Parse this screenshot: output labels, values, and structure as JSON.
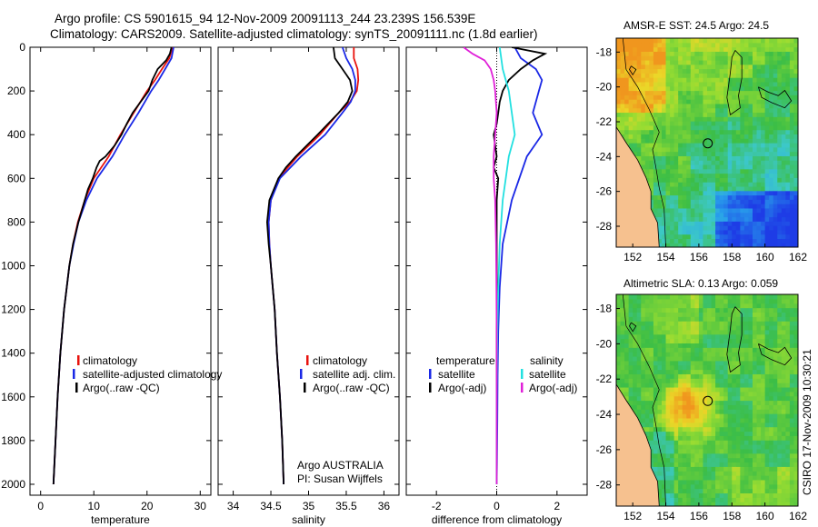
{
  "header": {
    "line1": "Argo profile: CS 5901615_94 12-Nov-2009 20091113_244 23.239S 156.539E",
    "line2": "Climatology: CARS2009. Satellite-adjusted climatology: synTS_20091111.nc (1.8d earlier)"
  },
  "side_label": "CSIRO 17-Nov-2009 10:30:21",
  "colors": {
    "climatology": "#e8120c",
    "satellite": "#1a28e6",
    "argo": "#000000",
    "salinity_sat": "#22e0e0",
    "salinity_argo": "#e020d8"
  },
  "chart_data": [
    {
      "type": "line",
      "xlabel": "temperature",
      "xlim": [
        -2,
        32
      ],
      "ylim": [
        2050,
        0
      ],
      "x_ticks": [
        "0",
        "10",
        "20",
        "30"
      ],
      "y_ticks": [
        "0",
        "200",
        "400",
        "600",
        "800",
        "1000",
        "1200",
        "1400",
        "1600",
        "1800",
        "2000"
      ],
      "legend": [
        "climatology",
        "satellite-adjusted climatology",
        "Argo(..raw -QC)"
      ],
      "series": [
        {
          "name": "climatology",
          "color": "#e8120c",
          "depth": [
            0,
            50,
            100,
            150,
            200,
            300,
            400,
            500,
            600,
            700,
            800,
            900,
            1000,
            1200,
            1400,
            1600,
            1800,
            2000
          ],
          "values": [
            24.8,
            24.2,
            22.8,
            21.5,
            20.0,
            17.5,
            15.0,
            12.8,
            10.0,
            8.3,
            7.0,
            6.1,
            5.4,
            4.4,
            3.7,
            3.2,
            2.8,
            2.4
          ]
        },
        {
          "name": "satellite-adjusted climatology",
          "color": "#1a28e6",
          "depth": [
            0,
            50,
            100,
            150,
            200,
            300,
            400,
            500,
            600,
            700,
            800,
            900,
            1000,
            1200,
            1400,
            1600,
            1800,
            2000
          ],
          "values": [
            25.0,
            24.6,
            23.4,
            22.2,
            20.8,
            18.4,
            15.8,
            13.5,
            10.6,
            8.6,
            7.1,
            6.2,
            5.4,
            4.4,
            3.7,
            3.2,
            2.8,
            2.4
          ]
        },
        {
          "name": "Argo(..raw -QC)",
          "color": "#000000",
          "depth": [
            0,
            30,
            60,
            100,
            150,
            200,
            250,
            300,
            350,
            400,
            450,
            500,
            520,
            550,
            600,
            650,
            700,
            800,
            900,
            1000,
            1200,
            1400,
            1600,
            1800,
            2000
          ],
          "values": [
            24.6,
            24.3,
            23.6,
            22.0,
            21.0,
            20.3,
            18.8,
            17.3,
            16.2,
            15.2,
            13.9,
            12.2,
            11.1,
            10.5,
            9.8,
            8.9,
            8.3,
            7.1,
            6.1,
            5.4,
            4.4,
            3.7,
            3.2,
            2.8,
            2.4
          ]
        }
      ]
    },
    {
      "type": "line",
      "xlabel": "salinity",
      "xlim": [
        33.8,
        36.2
      ],
      "ylim": [
        2050,
        0
      ],
      "x_ticks": [
        "34",
        "34.5",
        "35",
        "35.5",
        "36"
      ],
      "legend": [
        "climatology",
        "satellite adj. clim.",
        "Argo(..raw -QC)"
      ],
      "annotation": [
        "Argo AUSTRALIA",
        "PI: Susan Wijffels"
      ],
      "series": [
        {
          "name": "climatology",
          "color": "#e8120c",
          "depth": [
            0,
            50,
            100,
            150,
            200,
            250,
            300,
            400,
            500,
            600,
            700,
            800,
            900,
            1000,
            1200,
            1400,
            1600,
            1800,
            2000
          ],
          "values": [
            35.6,
            35.6,
            35.65,
            35.66,
            35.64,
            35.55,
            35.4,
            35.15,
            34.85,
            34.6,
            34.5,
            34.47,
            34.48,
            34.5,
            34.55,
            34.58,
            34.62,
            34.65,
            34.67
          ]
        },
        {
          "name": "satellite adj. clim.",
          "color": "#1a28e6",
          "depth": [
            0,
            50,
            100,
            150,
            200,
            250,
            300,
            400,
            500,
            600,
            700,
            800,
            900,
            1000,
            1200,
            1400,
            1600,
            1800,
            2000
          ],
          "values": [
            35.45,
            35.5,
            35.58,
            35.62,
            35.62,
            35.56,
            35.45,
            35.22,
            34.9,
            34.62,
            34.5,
            34.47,
            34.48,
            34.5,
            34.55,
            34.58,
            34.62,
            34.65,
            34.67
          ]
        },
        {
          "name": "Argo(..raw -QC)",
          "color": "#000000",
          "depth": [
            0,
            50,
            100,
            150,
            200,
            250,
            300,
            400,
            500,
            550,
            600,
            700,
            800,
            900,
            1000,
            1200,
            1400,
            1600,
            1800,
            2000
          ],
          "values": [
            35.33,
            35.35,
            35.45,
            35.55,
            35.58,
            35.52,
            35.4,
            35.12,
            34.83,
            34.7,
            34.6,
            34.48,
            34.45,
            34.47,
            34.5,
            34.55,
            34.58,
            34.62,
            34.65,
            34.67
          ]
        }
      ]
    },
    {
      "type": "line",
      "xlabel": "difference from climatology",
      "xlim": [
        -3,
        3
      ],
      "ylim": [
        2050,
        0
      ],
      "x_ticks": [
        "-2",
        "0",
        "2"
      ],
      "legend": {
        "temperature_title": "temperature",
        "salinity_title": "salinity",
        "temperature": [
          "satellite",
          "Argo(-adj)"
        ],
        "salinity": [
          "satellite",
          "Argo(-adj)"
        ]
      },
      "series": [
        {
          "name": "temperature satellite",
          "color": "#1a28e6",
          "depth": [
            0,
            50,
            100,
            150,
            200,
            300,
            400,
            500,
            700,
            900,
            1100,
            1300,
            1500,
            1700,
            1900,
            2000
          ],
          "values": [
            0.6,
            0.8,
            1.3,
            1.5,
            1.4,
            1.2,
            1.5,
            1.0,
            0.5,
            0.2,
            0.1,
            0.05,
            0.03,
            0.02,
            0.01,
            0.0
          ]
        },
        {
          "name": "temperature Argo(-adj)",
          "color": "#000000",
          "depth": [
            0,
            30,
            60,
            100,
            150,
            200,
            250,
            300,
            350,
            400,
            450,
            500,
            550,
            600,
            700,
            800,
            1000,
            1200,
            1500,
            1800,
            2000
          ],
          "values": [
            0.5,
            1.6,
            1.2,
            0.8,
            0.4,
            0.2,
            0.1,
            0.05,
            0.0,
            -0.1,
            -0.05,
            0.0,
            -0.1,
            0.05,
            0.0,
            0.0,
            0.0,
            0.0,
            0.0,
            0.0,
            0.0
          ]
        },
        {
          "name": "salinity satellite",
          "color": "#22e0e0",
          "depth": [
            0,
            100,
            200,
            300,
            400,
            500,
            600,
            700,
            900,
            1100,
            1300,
            1600,
            2000
          ],
          "values": [
            0.1,
            0.2,
            0.4,
            0.5,
            0.6,
            0.4,
            0.3,
            0.2,
            0.1,
            0.05,
            0.02,
            0.0,
            0.0
          ]
        },
        {
          "name": "salinity Argo(-adj)",
          "color": "#e020d8",
          "depth": [
            0,
            30,
            60,
            100,
            150,
            200,
            300,
            400,
            500,
            600,
            700,
            900,
            1100,
            1300,
            1500,
            1700,
            2000
          ],
          "values": [
            -1.1,
            -0.8,
            -0.4,
            -0.2,
            -0.1,
            -0.05,
            0.0,
            -0.05,
            -0.1,
            -0.1,
            -0.05,
            -0.02,
            -0.01,
            0.0,
            0.0,
            0.0,
            0.0
          ]
        }
      ]
    },
    {
      "type": "heatmap",
      "title": "AMSR-E SST: 24.5  Argo: 24.5",
      "xlim": [
        151,
        162
      ],
      "ylim": [
        -29.2,
        -17.2
      ],
      "x_ticks": [
        "152",
        "154",
        "156",
        "158",
        "160",
        "162"
      ],
      "y_ticks": [
        "-18",
        "-20",
        "-22",
        "-24",
        "-26",
        "-28"
      ],
      "argo_position": {
        "lon": 156.539,
        "lat": -23.239
      }
    },
    {
      "type": "heatmap",
      "title": "Altimetric SLA: 0.13  Argo: 0.059",
      "xlim": [
        151,
        162
      ],
      "ylim": [
        -29.2,
        -17.2
      ],
      "x_ticks": [
        "152",
        "154",
        "156",
        "158",
        "160",
        "162"
      ],
      "y_ticks": [
        "-18",
        "-20",
        "-22",
        "-24",
        "-26",
        "-28"
      ],
      "argo_position": {
        "lon": 156.539,
        "lat": -23.239
      }
    }
  ]
}
